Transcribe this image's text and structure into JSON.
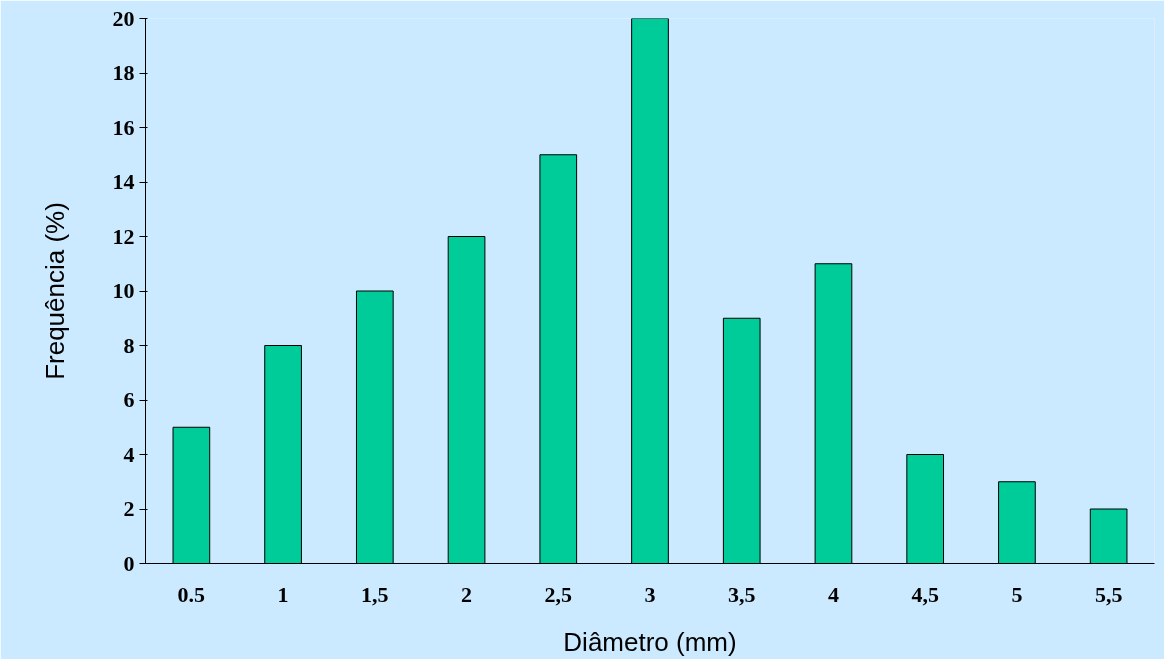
{
  "chart_data": {
    "type": "bar",
    "xlabel": "Diâmetro (mm)",
    "ylabel": "Frequência (%)",
    "categories": [
      "0.5",
      "1",
      "1,5",
      "2",
      "2,5",
      "3",
      "3,5",
      "4",
      "4,5",
      "5",
      "5,5"
    ],
    "values": [
      5,
      8,
      10,
      12,
      15,
      20,
      9,
      11,
      4,
      3,
      2
    ],
    "color": "#00cc99",
    "ylim": [
      0,
      20
    ],
    "yticks": [
      0,
      2,
      4,
      6,
      8,
      10,
      12,
      14,
      16,
      18,
      20
    ],
    "grid": false
  }
}
